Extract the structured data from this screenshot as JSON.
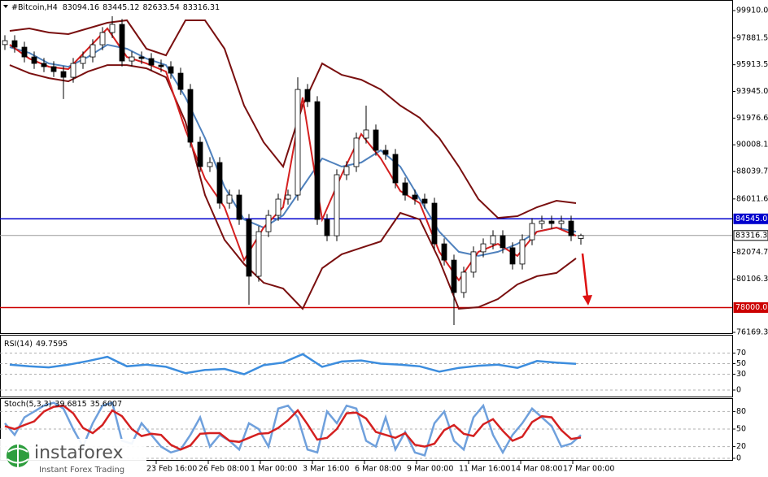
{
  "chart_data": [
    {
      "type": "candlestick",
      "title": "#Bitcoin,H4",
      "x": [
        6,
        18,
        30,
        42,
        54,
        66,
        78,
        90,
        102,
        114,
        126,
        138,
        150,
        162,
        174,
        186,
        198,
        210,
        222,
        234,
        246,
        258,
        270,
        282,
        294,
        306,
        318,
        330,
        342,
        354,
        366,
        378,
        390,
        402,
        414,
        426,
        438,
        450,
        462,
        474,
        486,
        498,
        510,
        522,
        534,
        546,
        558,
        570,
        582,
        594,
        606,
        618,
        630,
        642,
        654,
        666,
        678,
        690,
        702,
        714
      ],
      "open": [
        97400,
        97690,
        97210,
        96490,
        96010,
        95770,
        95410,
        94990,
        96010,
        96490,
        97390,
        98290,
        98890,
        96190,
        96490,
        96370,
        95890,
        95770,
        95290,
        94090,
        90200,
        88400,
        88700,
        85700,
        86300,
        84500,
        80310,
        83600,
        84800,
        86000,
        86300,
        94090,
        93190,
        84500,
        83300,
        87800,
        88400,
        90500,
        91100,
        89600,
        89300,
        87200,
        86300,
        86000,
        85700,
        82700,
        81500,
        79110,
        80610,
        82110,
        82700,
        83300,
        82410,
        81210,
        83000,
        84200,
        84380,
        84200,
        84380,
        83094.16
      ],
      "high": [
        98090,
        98090,
        97610,
        96890,
        96410,
        96170,
        95810,
        96410,
        96890,
        97790,
        98690,
        99490,
        99290,
        96890,
        96890,
        96770,
        96290,
        96170,
        95690,
        94490,
        90600,
        89100,
        89100,
        86700,
        86700,
        84900,
        84000,
        85200,
        86400,
        86700,
        94990,
        94490,
        93590,
        84900,
        88200,
        88800,
        90900,
        92900,
        91500,
        90000,
        89700,
        87600,
        86700,
        86400,
        86100,
        83100,
        81900,
        81010,
        82510,
        83100,
        83700,
        83700,
        82810,
        83400,
        84600,
        84780,
        84780,
        84780,
        84780,
        83445.12
      ],
      "low": [
        97000,
        96810,
        96090,
        95610,
        95370,
        95010,
        93380,
        94590,
        95610,
        96090,
        96990,
        97890,
        95790,
        95790,
        95970,
        95490,
        95370,
        94890,
        93690,
        89800,
        88000,
        88000,
        85300,
        85300,
        84100,
        78210,
        79910,
        83200,
        84400,
        85600,
        85900,
        92790,
        84100,
        82900,
        82900,
        87400,
        88000,
        90100,
        89200,
        88900,
        86800,
        85900,
        85600,
        85300,
        82300,
        81100,
        76710,
        78710,
        80210,
        81710,
        82300,
        82010,
        80810,
        80810,
        82600,
        83800,
        83800,
        83800,
        82900,
        82633.54
      ],
      "close": [
        97690,
        97210,
        96490,
        96010,
        95770,
        95410,
        94990,
        96010,
        96490,
        97390,
        98290,
        98890,
        96190,
        96490,
        96370,
        95890,
        95770,
        95290,
        94090,
        90200,
        88400,
        88700,
        85700,
        86300,
        84500,
        80310,
        83600,
        84800,
        86000,
        86300,
        94090,
        93190,
        84500,
        83300,
        87800,
        88400,
        90500,
        91100,
        89600,
        89300,
        87200,
        86300,
        86000,
        85700,
        82700,
        81500,
        79110,
        80610,
        82110,
        82700,
        83300,
        82410,
        81210,
        83000,
        84200,
        84380,
        84200,
        84380,
        83300,
        83316.31
      ],
      "up_color": "#ffffff",
      "down_color": "#000000",
      "overlays": [
        {
          "color": "#7a1010",
          "x": [
            12,
            36,
            60,
            84,
            108,
            132,
            156,
            180,
            204,
            228,
            252,
            276,
            300,
            324,
            348,
            372,
            396,
            420,
            444,
            468,
            492,
            516,
            540,
            564,
            588,
            612,
            636,
            660,
            684,
            708
          ],
          "values": [
            98410,
            98590,
            98290,
            98170,
            98590,
            99010,
            99190,
            97090,
            96610,
            99190,
            99190,
            97090,
            92900,
            90200,
            88400,
            92900,
            96010,
            95170,
            94810,
            94090,
            92900,
            92000,
            90500,
            88400,
            86000,
            84620,
            84740,
            85400,
            85880,
            85700
          ]
        },
        {
          "color": "#7a1010",
          "x": [
            12,
            36,
            60,
            84,
            108,
            132,
            156,
            180,
            204,
            228,
            252,
            276,
            300,
            324,
            348,
            372,
            396,
            420,
            444,
            468,
            492,
            516,
            540,
            564,
            588,
            612,
            636,
            660,
            684,
            708
          ],
          "values": [
            95890,
            95290,
            94930,
            94690,
            95410,
            95890,
            95890,
            95650,
            94990,
            91700,
            86300,
            83000,
            81210,
            79830,
            79410,
            77910,
            80900,
            81930,
            82410,
            82880,
            84980,
            84500,
            81500,
            77910,
            78030,
            78630,
            79710,
            80310,
            80550,
            81630
          ]
        },
        {
          "color": "#4f81bd",
          "x": [
            12,
            36,
            60,
            84,
            108,
            132,
            156,
            180,
            204,
            228,
            252,
            276,
            300,
            324,
            348,
            372,
            396,
            420,
            444,
            468,
            492,
            516,
            540,
            564,
            588,
            612,
            636,
            660,
            684,
            708
          ],
          "values": [
            97210,
            96790,
            96010,
            95770,
            96490,
            97390,
            97090,
            96370,
            95890,
            93500,
            90500,
            86900,
            84500,
            83900,
            84800,
            86900,
            89000,
            88400,
            88700,
            89600,
            88400,
            86000,
            83600,
            82110,
            81810,
            82110,
            82700,
            83600,
            83900,
            83600
          ]
        },
        {
          "color": "#d42020",
          "x": [
            12,
            36,
            60,
            84,
            108,
            132,
            156,
            180,
            204,
            228,
            252,
            276,
            300,
            324,
            348,
            372,
            396,
            420,
            444,
            468,
            492,
            516,
            540,
            564,
            588,
            612,
            636,
            660,
            684,
            708
          ],
          "values": [
            97390,
            96370,
            95770,
            95590,
            97090,
            98590,
            96490,
            96010,
            95410,
            91100,
            87500,
            85400,
            81500,
            83900,
            85400,
            93500,
            84500,
            87800,
            90800,
            89000,
            86600,
            85700,
            82110,
            80010,
            82110,
            82700,
            81810,
            83600,
            83900,
            83300
          ]
        }
      ],
      "levels": [
        {
          "value": 84545,
          "label": "84545.0",
          "color": "#0000cd"
        },
        {
          "value": 78000,
          "label": "78000.0",
          "color": "#cc0000"
        },
        {
          "value": 83316.3,
          "color": "#9a9a9a"
        }
      ],
      "xlim": [
        0,
        900
      ],
      "ylim": [
        76110,
        100690
      ],
      "yticks": [
        {
          "value": 99910,
          "label": "99910.0"
        },
        97881.5,
        95913.5,
        {
          "value": 93945,
          "label": "93945.0"
        },
        91976.6,
        90008.1,
        88039.7,
        86011.6,
        82074.7,
        80106.3,
        76169.3
      ],
      "xticks": [
        {
          "value": 192,
          "label": "23 Feb 16:00"
        },
        {
          "value": 256,
          "label": "26 Feb 08:00"
        },
        {
          "value": 320,
          "label": "1 Mar 00:00"
        },
        {
          "value": 384,
          "label": "3 Mar 16:00"
        },
        {
          "value": 448,
          "label": "6 Mar 08:00"
        },
        {
          "value": 512,
          "label": "9 Mar 00:00"
        },
        {
          "value": 576,
          "label": "11 Mar 16:00"
        },
        {
          "value": 640,
          "label": "14 Mar 08:00"
        },
        {
          "value": 704,
          "label": "17 Mar 00:00"
        }
      ]
    },
    {
      "type": "line",
      "title": "RSI(14)",
      "x": [
        12,
        36,
        60,
        84,
        108,
        132,
        156,
        180,
        204,
        228,
        252,
        276,
        300,
        324,
        348,
        372,
        396,
        420,
        444,
        468,
        492,
        516,
        540,
        564,
        588,
        612,
        636,
        660,
        684,
        708
      ],
      "series": [
        {
          "color": "#3c8dde",
          "values": [
            48,
            45,
            43,
            48,
            55,
            63,
            45,
            48,
            44,
            32,
            38,
            40,
            30,
            47,
            52,
            68,
            44,
            54,
            56,
            50,
            48,
            45,
            35,
            42,
            46,
            48,
            42,
            55,
            52,
            49.7595
          ]
        }
      ],
      "xlim": [
        0,
        900
      ],
      "ylim": [
        0,
        100
      ],
      "yticks": [
        0,
        30,
        50,
        70
      ],
      "grid": true
    },
    {
      "type": "line",
      "title": "Stoch(5,3,3)",
      "x": [
        6,
        18,
        30,
        42,
        54,
        66,
        78,
        90,
        102,
        114,
        126,
        138,
        150,
        162,
        174,
        186,
        198,
        210,
        222,
        234,
        246,
        258,
        270,
        282,
        294,
        306,
        318,
        330,
        342,
        354,
        366,
        378,
        390,
        402,
        414,
        426,
        438,
        450,
        462,
        474,
        486,
        498,
        510,
        522,
        534,
        546,
        558,
        570,
        582,
        594,
        606,
        618,
        630,
        642,
        654,
        666,
        678,
        690,
        702,
        714
      ],
      "series": [
        {
          "color": "#6fa0dc",
          "values": [
            60,
            40,
            70,
            80,
            90,
            95,
            85,
            50,
            20,
            60,
            90,
            95,
            30,
            25,
            60,
            40,
            20,
            10,
            15,
            40,
            70,
            20,
            40,
            30,
            15,
            60,
            50,
            20,
            85,
            90,
            70,
            15,
            10,
            80,
            60,
            90,
            85,
            30,
            20,
            70,
            15,
            45,
            10,
            5,
            60,
            80,
            30,
            15,
            70,
            90,
            40,
            10,
            40,
            60,
            85,
            70,
            55,
            20,
            25,
            39.6815
          ]
        },
        {
          "color": "#d42020",
          "values": [
            55,
            50,
            57,
            63,
            80,
            88,
            90,
            77,
            52,
            43,
            57,
            82,
            72,
            50,
            38,
            42,
            40,
            23,
            15,
            22,
            42,
            43,
            43,
            30,
            28,
            35,
            42,
            43,
            52,
            65,
            82,
            58,
            32,
            35,
            50,
            77,
            78,
            68,
            45,
            40,
            35,
            43,
            23,
            20,
            25,
            48,
            57,
            42,
            38,
            58,
            67,
            47,
            30,
            37,
            62,
            72,
            70,
            48,
            33,
            35.6007
          ]
        }
      ],
      "xlim": [
        0,
        900
      ],
      "ylim": [
        0,
        100
      ],
      "yticks": [
        0,
        20,
        50,
        80
      ],
      "grid": true
    }
  ],
  "logo": {
    "brand": "instaforex",
    "tagline": "Instant Forex Trading"
  }
}
